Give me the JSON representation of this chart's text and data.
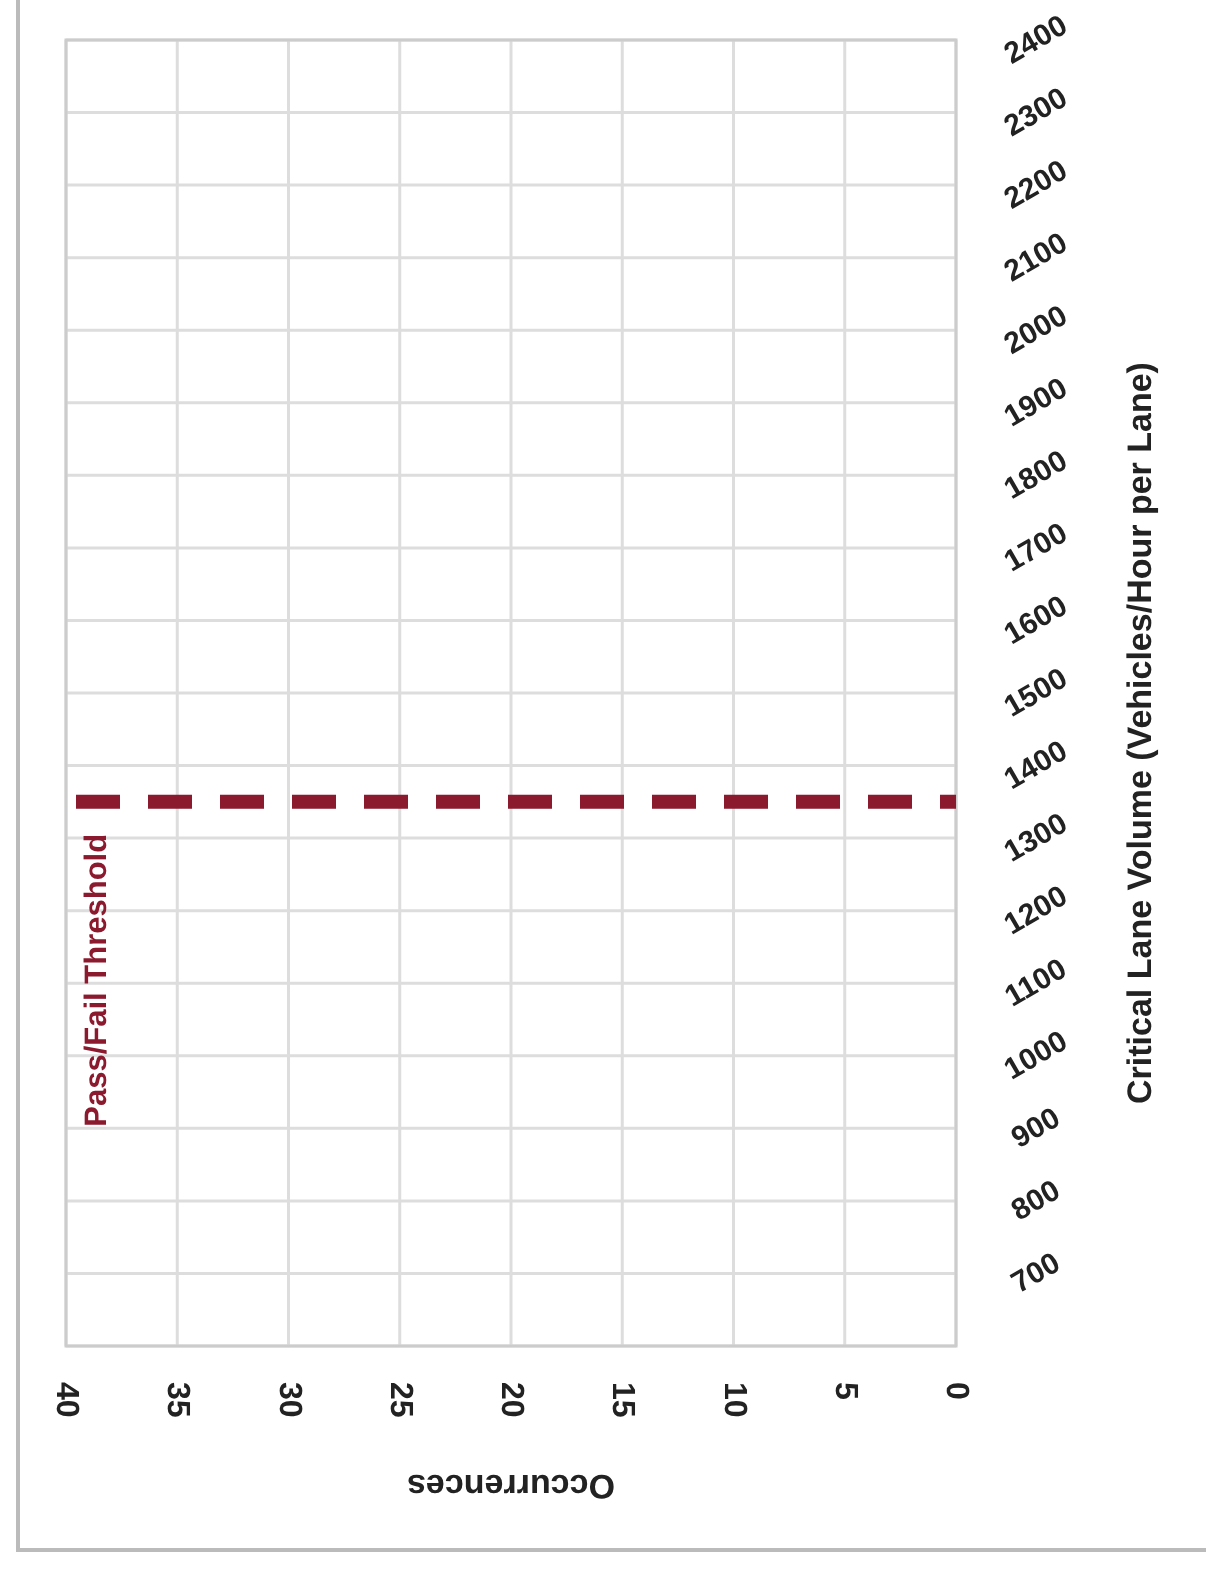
{
  "chart_data": {
    "type": "bar",
    "xlabel": "Occurrences",
    "ylabel": "Critical Lane Volume (Vehicles/Hour per Lane)",
    "xlim": [
      40,
      0
    ],
    "xticks": [
      40,
      35,
      30,
      25,
      20,
      15,
      10,
      5,
      0
    ],
    "ylim": [
      600,
      2400
    ],
    "yticks": [
      {
        "value": 600,
        "label": null
      },
      700,
      800,
      900,
      1000,
      1100,
      1200,
      1300,
      1400,
      1500,
      1600,
      1700,
      1800,
      1900,
      2000,
      2100,
      2200,
      2300,
      2400
    ],
    "grid": true,
    "ref_lines": [
      {
        "axis": "y",
        "value": 1350,
        "label": "Pass/Fail Threshold",
        "color": "#8b1a2e",
        "line_style": "dashed"
      }
    ]
  }
}
